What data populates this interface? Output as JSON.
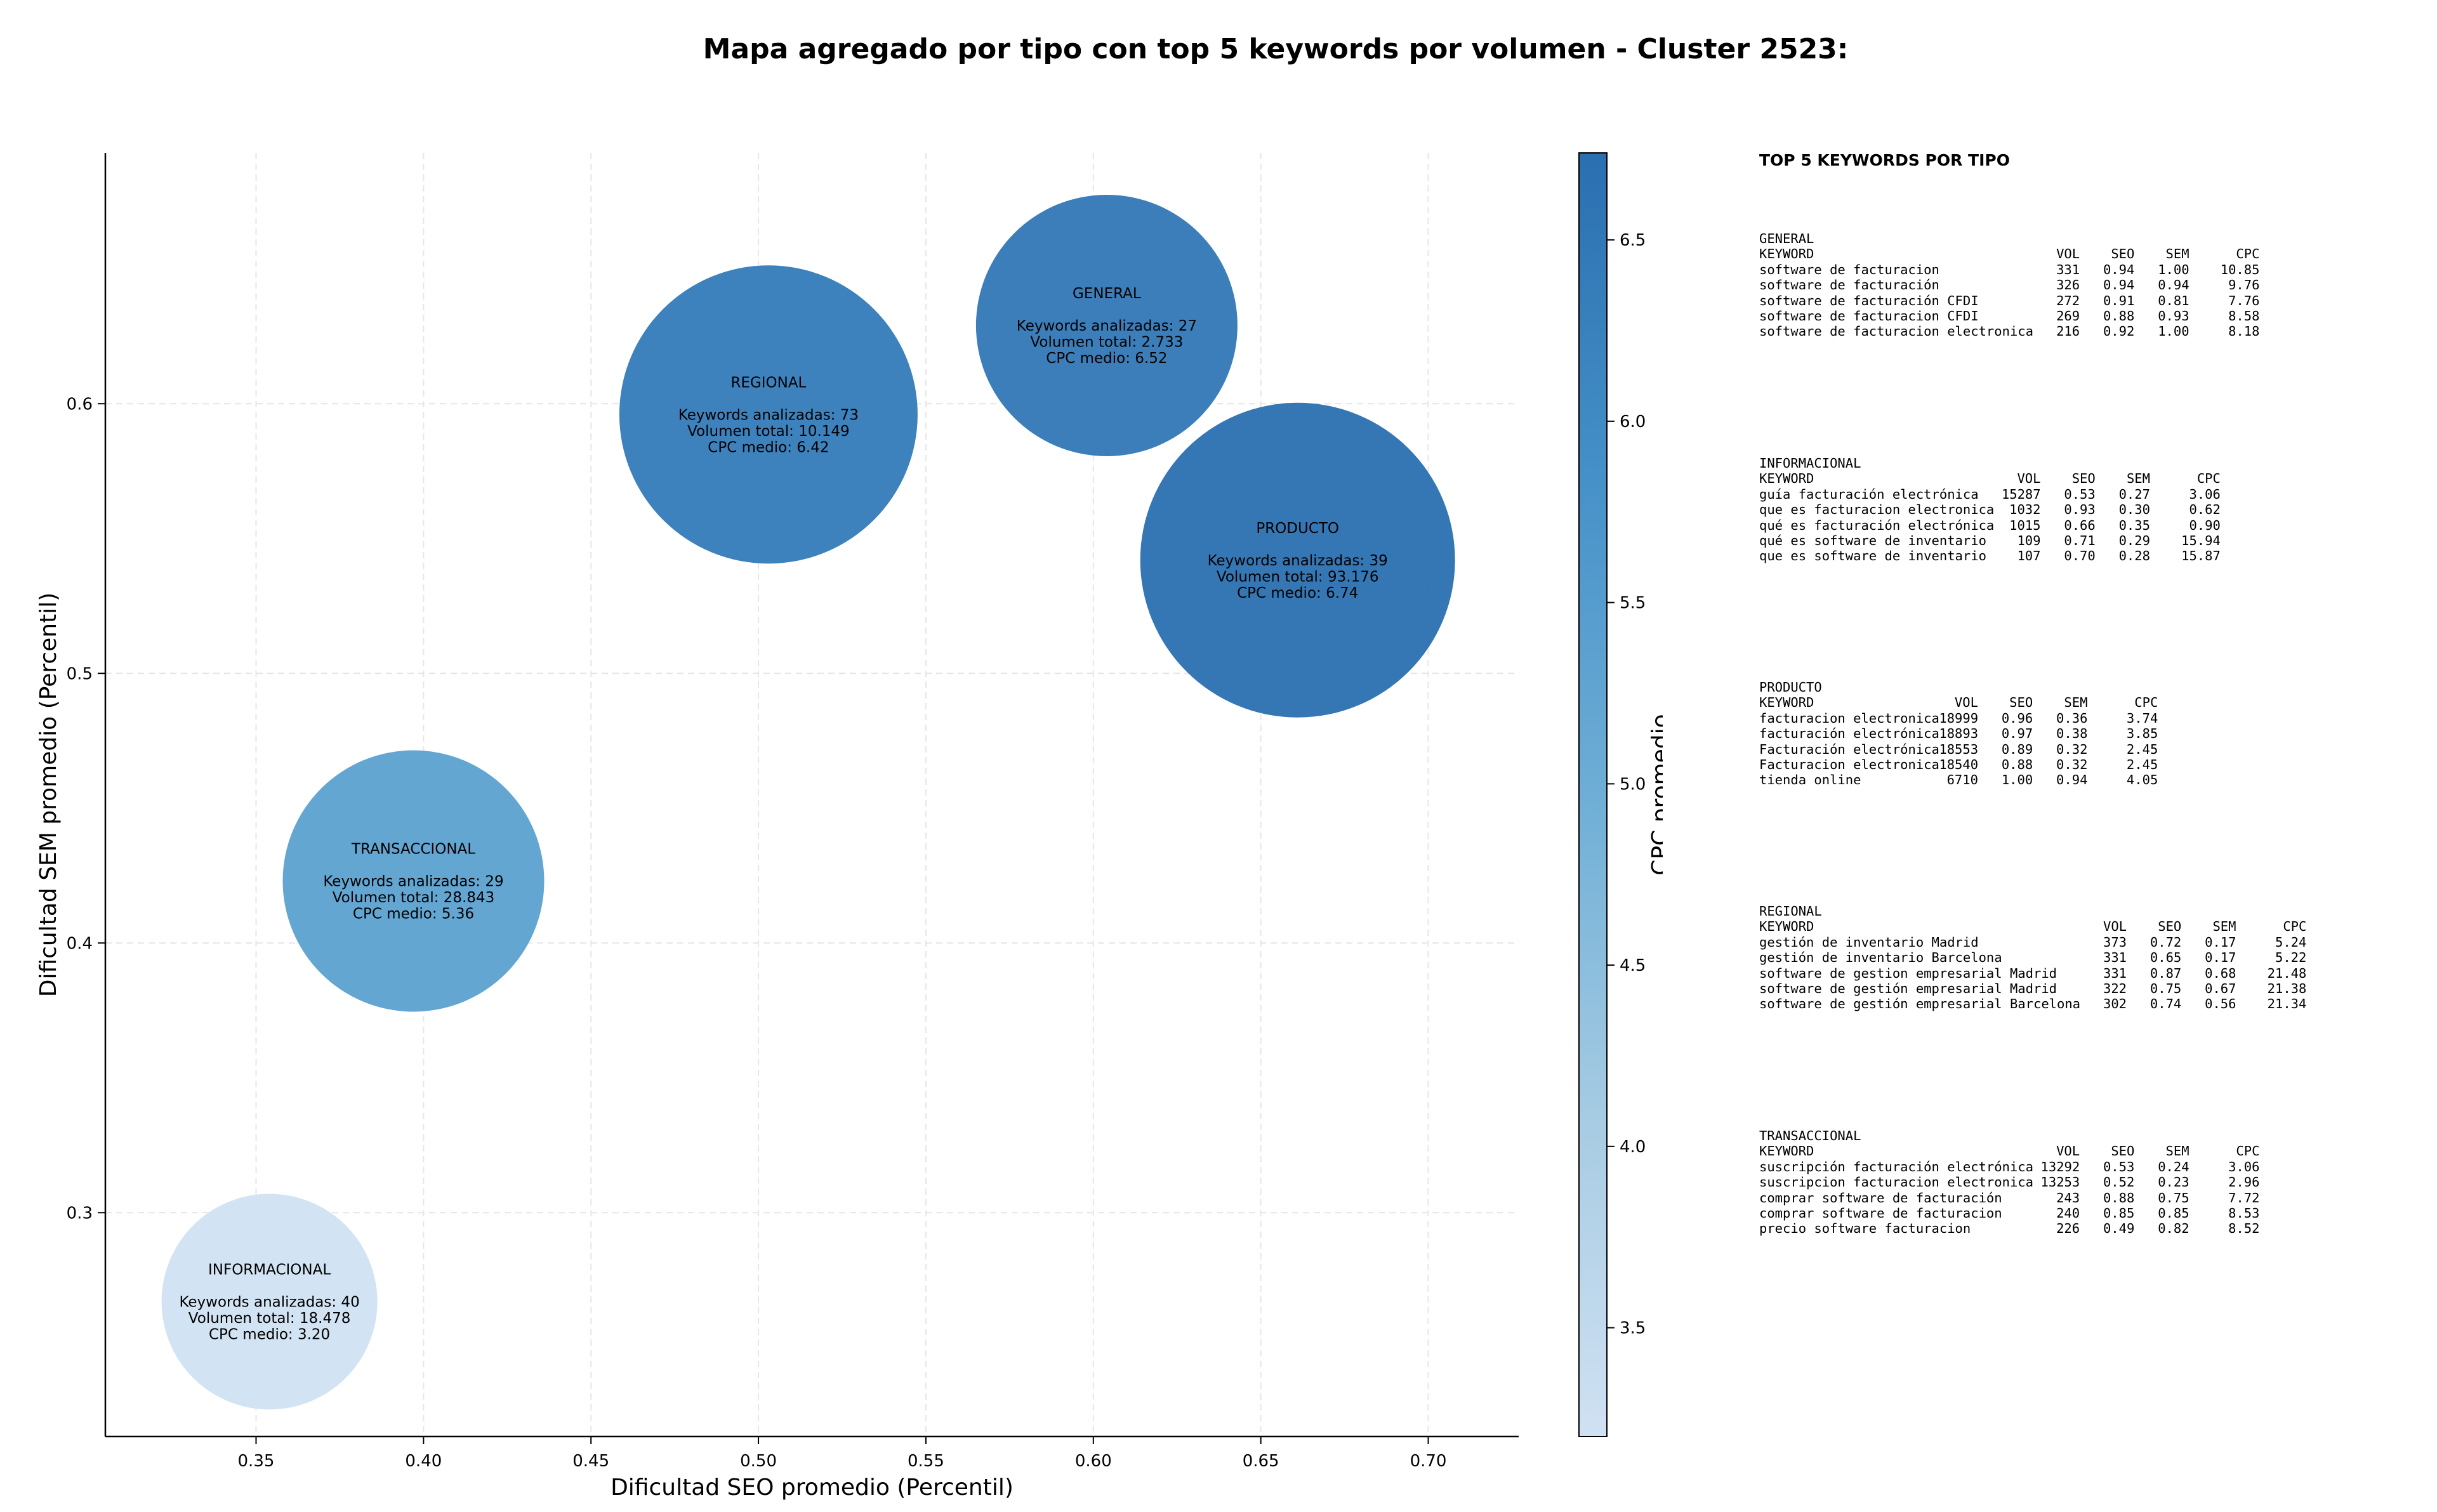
{
  "title": "Mapa agregado por tipo con top 5 keywords por volumen - Cluster 2523:",
  "chart_data": {
    "type": "scatter",
    "xlabel": "Dificultad SEO promedio (Percentil)",
    "ylabel": "Dificultad SEM promedio (Percentil)",
    "xlim": [
      0.305,
      0.727
    ],
    "ylim": [
      0.217,
      0.693
    ],
    "xticks": [
      "0.35",
      "0.40",
      "0.45",
      "0.50",
      "0.55",
      "0.60",
      "0.65",
      "0.70"
    ],
    "yticks": [
      "0.3",
      "0.4",
      "0.5",
      "0.6"
    ],
    "grid": true,
    "colorbar": {
      "label": "CPC promedio",
      "min": 3.2,
      "max": 6.74,
      "ticks": [
        "3.5",
        "4.0",
        "4.5",
        "5.0",
        "5.5",
        "6.0",
        "6.5"
      ]
    },
    "points": [
      {
        "name": "INFORMACIONAL",
        "x": 0.354,
        "y": 0.267,
        "keywords": 40,
        "volume": 18478,
        "cpc": 3.2,
        "lines": [
          "INFORMACIONAL",
          "",
          "Keywords analizadas: 40",
          "Volumen total: 18.478",
          "CPC medio: 3.20"
        ]
      },
      {
        "name": "TRANSACCIONAL",
        "x": 0.397,
        "y": 0.423,
        "keywords": 29,
        "volume": 28843,
        "cpc": 5.36,
        "lines": [
          "TRANSACCIONAL",
          "",
          "Keywords analizadas: 29",
          "Volumen total: 28.843",
          "CPC medio: 5.36"
        ]
      },
      {
        "name": "REGIONAL",
        "x": 0.503,
        "y": 0.596,
        "keywords": 73,
        "volume": 10149,
        "cpc": 6.42,
        "lines": [
          "REGIONAL",
          "",
          "Keywords analizadas: 73",
          "Volumen total: 10.149",
          "CPC medio: 6.42"
        ]
      },
      {
        "name": "GENERAL",
        "x": 0.604,
        "y": 0.629,
        "keywords": 27,
        "volume": 2733,
        "cpc": 6.52,
        "lines": [
          "GENERAL",
          "",
          "Keywords analizadas: 27",
          "Volumen total: 2.733",
          "CPC medio: 6.52"
        ]
      },
      {
        "name": "PRODUCTO",
        "x": 0.661,
        "y": 0.542,
        "keywords": 39,
        "volume": 93176,
        "cpc": 6.74,
        "lines": [
          "PRODUCTO",
          "",
          "Keywords analizadas: 39",
          "Volumen total: 93.176",
          "CPC medio: 6.74"
        ]
      }
    ]
  },
  "side_panel": {
    "title": "TOP 5 KEYWORDS POR TIPO",
    "header": [
      "KEYWORD",
      "VOL",
      "SEO",
      "SEM",
      "CPC"
    ],
    "groups": [
      {
        "name": "GENERAL",
        "rows": [
          [
            "software de facturacion",
            "331",
            "0.94",
            "1.00",
            "10.85"
          ],
          [
            "software de facturación",
            "326",
            "0.94",
            "0.94",
            "9.76"
          ],
          [
            "software de facturación CFDI",
            "272",
            "0.91",
            "0.81",
            "7.76"
          ],
          [
            "software de facturacion CFDI",
            "269",
            "0.88",
            "0.93",
            "8.58"
          ],
          [
            "software de facturacion electronica",
            "216",
            "0.92",
            "1.00",
            "8.18"
          ]
        ]
      },
      {
        "name": "INFORMACIONAL",
        "rows": [
          [
            "guía facturación electrónica",
            "15287",
            "0.53",
            "0.27",
            "3.06"
          ],
          [
            "que es facturacion electronica",
            "1032",
            "0.93",
            "0.30",
            "0.62"
          ],
          [
            "qué es facturación electrónica",
            "1015",
            "0.66",
            "0.35",
            "0.90"
          ],
          [
            "qué es software de inventario",
            "109",
            "0.71",
            "0.29",
            "15.94"
          ],
          [
            "que es software de inventario",
            "107",
            "0.70",
            "0.28",
            "15.87"
          ]
        ]
      },
      {
        "name": "PRODUCTO",
        "rows": [
          [
            "facturacion electronica",
            "18999",
            "0.96",
            "0.36",
            "3.74"
          ],
          [
            "facturación electrónica",
            "18893",
            "0.97",
            "0.38",
            "3.85"
          ],
          [
            "Facturación electrónica",
            "18553",
            "0.89",
            "0.32",
            "2.45"
          ],
          [
            "Facturacion electronica",
            "18540",
            "0.88",
            "0.32",
            "2.45"
          ],
          [
            "tienda online",
            "6710",
            "1.00",
            "0.94",
            "4.05"
          ]
        ]
      },
      {
        "name": "REGIONAL",
        "rows": [
          [
            "gestión de inventario Madrid",
            "373",
            "0.72",
            "0.17",
            "5.24"
          ],
          [
            "gestión de inventario Barcelona",
            "331",
            "0.65",
            "0.17",
            "5.22"
          ],
          [
            "software de gestion empresarial Madrid",
            "331",
            "0.87",
            "0.68",
            "21.48"
          ],
          [
            "software de gestión empresarial Madrid",
            "322",
            "0.75",
            "0.67",
            "21.38"
          ],
          [
            "software de gestión empresarial Barcelona",
            "302",
            "0.74",
            "0.56",
            "21.34"
          ]
        ]
      },
      {
        "name": "TRANSACCIONAL",
        "rows": [
          [
            "suscripción facturación electrónica",
            "13292",
            "0.53",
            "0.24",
            "3.06"
          ],
          [
            "suscripcion facturacion electronica",
            "13253",
            "0.52",
            "0.23",
            "2.96"
          ],
          [
            "comprar software de facturación",
            "243",
            "0.88",
            "0.75",
            "7.72"
          ],
          [
            "comprar software de facturacion",
            "240",
            "0.85",
            "0.85",
            "8.53"
          ],
          [
            "precio software facturacion",
            "226",
            "0.49",
            "0.82",
            "8.52"
          ]
        ]
      }
    ]
  },
  "colors": {
    "cmap_low": "#d0e1f2",
    "cmap_high": "#2a6fb0",
    "grid": "#e6e6e6",
    "axis": "#000000"
  }
}
